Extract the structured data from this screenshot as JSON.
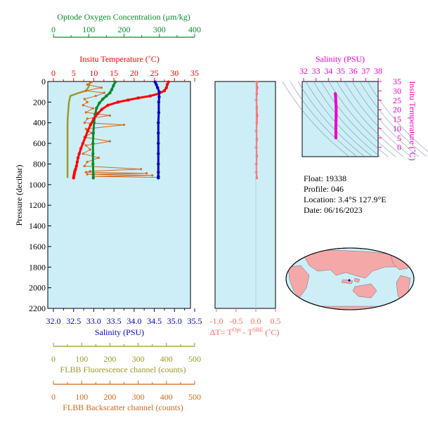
{
  "info": {
    "float": "Float:  19338",
    "profile": "Profile:  046",
    "location": "Location:  3.4°S  127.9°E",
    "date": "Date:  06/16/2023"
  },
  "colors": {
    "oxygen": "#0a8a2a",
    "temperature": "#ff0000",
    "salinity": "#0000cc",
    "fluorescence": "#9a9a2a",
    "backscatter": "#d2691e",
    "dT": "#ff6666",
    "ts": "#ee00cc",
    "panel_bg": "#cdeef7",
    "land": "#f5a8a8"
  },
  "chart_data": [
    {
      "type": "line",
      "panel": "main profile",
      "ylabel": "Pressure (decibar)",
      "ylim": [
        2200,
        0
      ],
      "yticks": [
        0,
        200,
        400,
        600,
        800,
        1000,
        1200,
        1400,
        1600,
        1800,
        2000,
        2200
      ],
      "axes": {
        "oxygen": {
          "label": "Optode Oxygen Concentration (μm/kg)",
          "range": [
            0,
            400
          ],
          "ticks": [
            "0",
            "100",
            "200",
            "300",
            "400"
          ]
        },
        "temperature": {
          "label": "Insitu Temperature (˚C)",
          "range": [
            0,
            35
          ],
          "ticks": [
            "0",
            "5",
            "10",
            "15",
            "20",
            "25",
            "30",
            "35"
          ]
        },
        "salinity": {
          "label": "Salinity (PSU)",
          "range": [
            32.0,
            35.5
          ],
          "ticks": [
            "32.0",
            "32.5",
            "33.0",
            "33.5",
            "34.0",
            "34.5",
            "35.0",
            "35.5"
          ]
        },
        "fluorescence": {
          "label": "FLBB Fluorescence channel (counts)",
          "range": [
            0,
            500
          ],
          "ticks": [
            "0",
            "100",
            "200",
            "300",
            "400",
            "500"
          ]
        },
        "backscatter": {
          "label": "FLBB Backscatter channel (counts)",
          "range": [
            0,
            500
          ],
          "ticks": [
            "0",
            "100",
            "200",
            "300",
            "400",
            "500"
          ]
        }
      },
      "series": [
        {
          "key": "temperature",
          "x": [
            28.5,
            28.2,
            28.0,
            27.5,
            26.0,
            24.0,
            21.0,
            18.5,
            16.0,
            13.5,
            12.0,
            11.0,
            10.0,
            9.2,
            8.5,
            7.9,
            7.3,
            6.8,
            6.4,
            6.1,
            5.9,
            5.7,
            5.5,
            5.3,
            5.2,
            5.1,
            5.0,
            5.0
          ],
          "y": [
            5,
            30,
            60,
            90,
            120,
            140,
            160,
            180,
            200,
            230,
            270,
            310,
            360,
            420,
            480,
            540,
            600,
            650,
            700,
            740,
            780,
            820,
            850,
            870,
            890,
            910,
            930,
            935
          ]
        },
        {
          "key": "salinity",
          "x": [
            34.52,
            34.55,
            34.58,
            34.62,
            34.62,
            34.61,
            34.61,
            34.6,
            34.6,
            34.6,
            34.6,
            34.6,
            34.6,
            34.6,
            34.6
          ],
          "y": [
            5,
            30,
            60,
            100,
            150,
            200,
            300,
            400,
            500,
            600,
            700,
            800,
            880,
            920,
            935
          ]
        },
        {
          "key": "oxygen",
          "x": [
            175,
            170,
            165,
            160,
            150,
            140,
            130,
            122,
            118,
            115,
            113,
            112,
            112,
            112,
            113,
            113
          ],
          "y": [
            5,
            40,
            80,
            110,
            140,
            170,
            210,
            260,
            320,
            400,
            500,
            600,
            700,
            800,
            900,
            935
          ]
        },
        {
          "key": "fluorescence",
          "x": [
            130,
            125,
            115,
            90,
            60,
            55,
            52,
            50,
            50,
            50,
            50,
            50,
            50
          ],
          "y": [
            5,
            50,
            90,
            110,
            140,
            200,
            300,
            400,
            500,
            600,
            700,
            850,
            935
          ]
        },
        {
          "key": "backscatter",
          "x": [
            135,
            120,
            170,
            115,
            180,
            150,
            110,
            120,
            105,
            140,
            115,
            200,
            120,
            110,
            250,
            115,
            135,
            110,
            200,
            115,
            130,
            105,
            160,
            120,
            110,
            310,
            130,
            115,
            330,
            120,
            350,
            140,
            370
          ],
          "y": [
            5,
            30,
            60,
            90,
            110,
            140,
            170,
            200,
            230,
            260,
            300,
            330,
            360,
            400,
            420,
            460,
            500,
            540,
            580,
            620,
            660,
            700,
            740,
            780,
            820,
            850,
            870,
            880,
            890,
            900,
            910,
            920,
            930
          ]
        }
      ]
    },
    {
      "type": "line",
      "panel": "temperature difference",
      "xlabel": "ΔT= T",
      "xlabel_sup1": "Opt",
      "xlabel_mid": " - T",
      "xlabel_sup2": "SBE",
      "xlabel_unit": " (˚C)",
      "xlim": [
        -1.0,
        0.5
      ],
      "xticks": [
        "-1.0",
        "-0.5",
        "0.0",
        "0.5"
      ],
      "ylim": [
        2200,
        0
      ],
      "series": [
        {
          "name": "",
          "x": [
            0.02,
            0.03,
            0.02,
            0.01,
            0.02,
            0.03,
            0.02,
            0.01,
            0.02,
            0.01,
            0.02,
            0.01,
            0.01,
            0.02
          ],
          "y": [
            5,
            60,
            120,
            180,
            250,
            330,
            400,
            480,
            560,
            640,
            720,
            800,
            880,
            935
          ]
        }
      ]
    },
    {
      "type": "scatter",
      "panel": "T-S diagram",
      "xlabel": "Salinity (PSU)",
      "ylabel": "Insitu Temperature (˚C)",
      "xlim": [
        32,
        38
      ],
      "xticks": [
        "32",
        "33",
        "34",
        "35",
        "36",
        "37",
        "38"
      ],
      "ylim": [
        -5,
        35
      ],
      "yticks": [
        "35",
        "30",
        "25",
        "20",
        "15",
        "10",
        "5",
        "0"
      ],
      "x": [
        34.55,
        34.58,
        34.6,
        34.62,
        34.62,
        34.61,
        34.6,
        34.6,
        34.6,
        34.6
      ],
      "y": [
        28.5,
        27,
        24,
        21,
        17,
        14,
        11,
        8,
        6,
        5
      ]
    }
  ]
}
